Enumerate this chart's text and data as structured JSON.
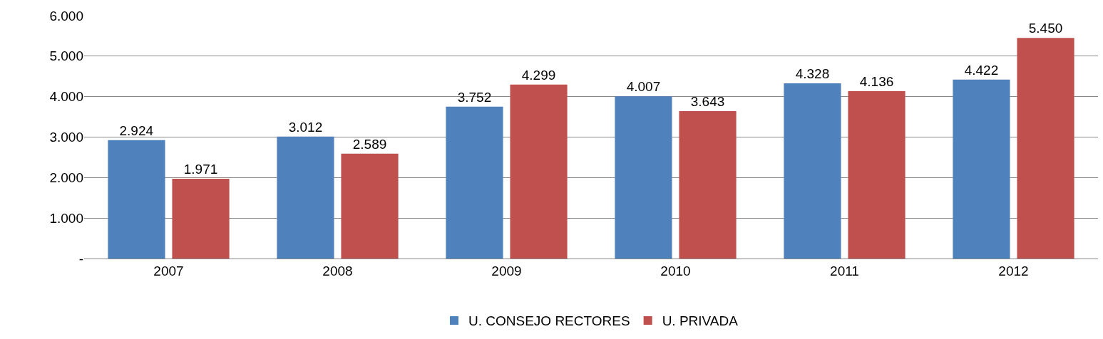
{
  "chart_data": {
    "type": "bar",
    "categories": [
      "2007",
      "2008",
      "2009",
      "2010",
      "2011",
      "2012"
    ],
    "series": [
      {
        "name": "U. CONSEJO RECTORES",
        "color": "#4f81bd",
        "values": [
          2924,
          3012,
          3752,
          4007,
          4328,
          4422
        ],
        "value_labels": [
          "2.924",
          "3.012",
          "3.752",
          "4.007",
          "4.328",
          "4.422"
        ]
      },
      {
        "name": "U. PRIVADA",
        "color": "#c0504d",
        "values": [
          1971,
          2589,
          4299,
          3643,
          4136,
          5450
        ],
        "value_labels": [
          "1.971",
          "2.589",
          "4.299",
          "3.643",
          "4.136",
          "5.450"
        ]
      }
    ],
    "ylim": [
      0,
      6000
    ],
    "yticks": [
      {
        "value": 0,
        "label": "-"
      },
      {
        "value": 1000,
        "label": "1.000"
      },
      {
        "value": 2000,
        "label": "2.000"
      },
      {
        "value": 3000,
        "label": "3.000"
      },
      {
        "value": 4000,
        "label": "4.000"
      },
      {
        "value": 5000,
        "label": "5.000"
      },
      {
        "value": 6000,
        "label": "6.000"
      }
    ],
    "grid": "y",
    "legend": "bottom"
  }
}
